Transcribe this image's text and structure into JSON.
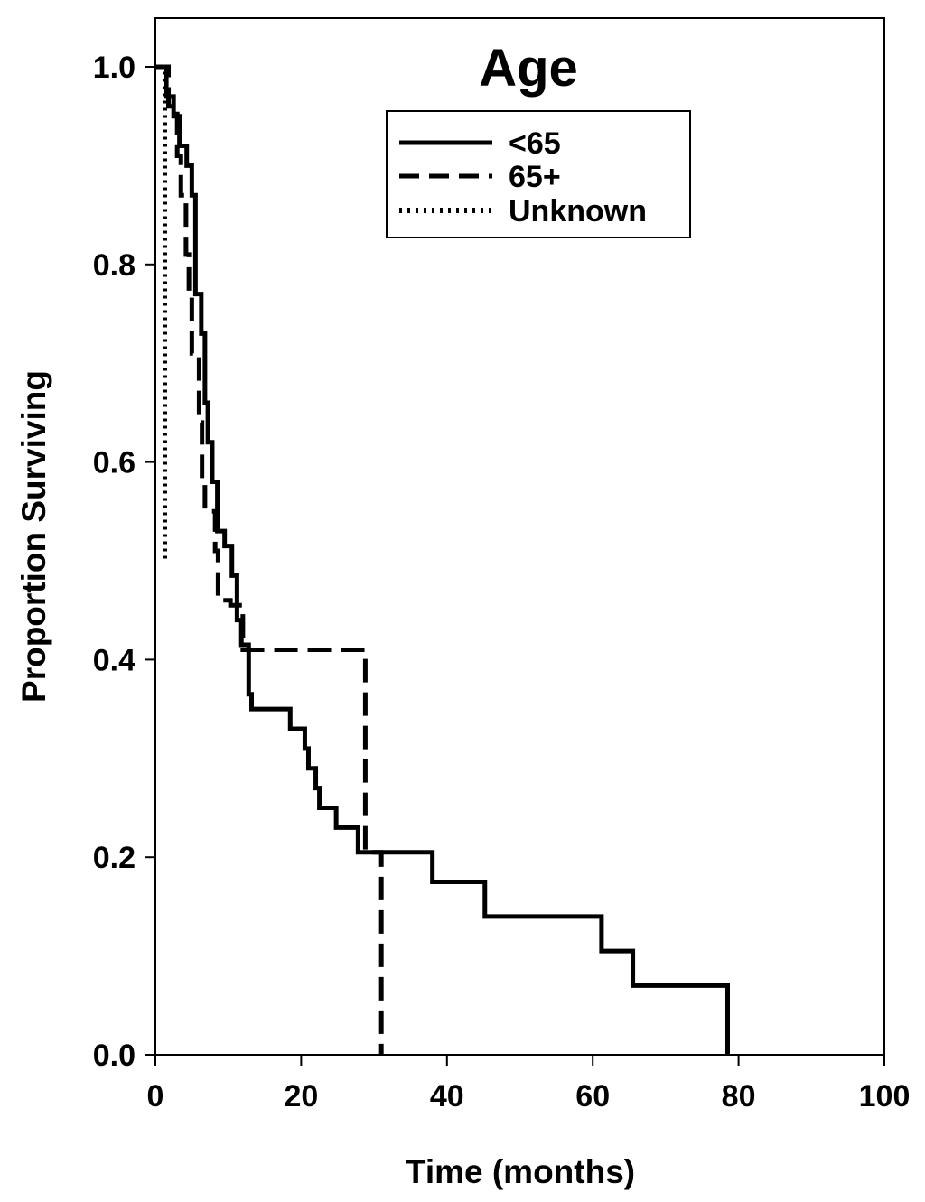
{
  "chart_data": {
    "type": "line",
    "step": true,
    "title": "Age",
    "xlabel": "Time (months)",
    "ylabel": "Proportion Surviving",
    "xlim": [
      0,
      100
    ],
    "ylim": [
      0,
      1.0
    ],
    "xticks": [
      "0",
      "20",
      "40",
      "60",
      "80",
      "100"
    ],
    "yticks": [
      "0.0",
      "0.2",
      "0.4",
      "0.6",
      "0.8",
      "1.0"
    ],
    "grid": false,
    "legend_placement": "top-right",
    "series": [
      {
        "name": "<65",
        "style": "solid",
        "color": "#000000",
        "points": [
          [
            0,
            1.0
          ],
          [
            1.0,
            1.0
          ],
          [
            1.5,
            0.97
          ],
          [
            2.5,
            0.95
          ],
          [
            3.3,
            0.92
          ],
          [
            4.3,
            0.9
          ],
          [
            5.0,
            0.87
          ],
          [
            5.5,
            0.77
          ],
          [
            6.3,
            0.73
          ],
          [
            6.8,
            0.66
          ],
          [
            7.2,
            0.62
          ],
          [
            7.8,
            0.58
          ],
          [
            8.5,
            0.53
          ],
          [
            9.5,
            0.515
          ],
          [
            10.5,
            0.485
          ],
          [
            11.2,
            0.44
          ],
          [
            11.8,
            0.415
          ],
          [
            12.8,
            0.365
          ],
          [
            13.2,
            0.35
          ],
          [
            18.5,
            0.33
          ],
          [
            20.5,
            0.31
          ],
          [
            21.0,
            0.29
          ],
          [
            22.0,
            0.27
          ],
          [
            22.5,
            0.25
          ],
          [
            24.8,
            0.23
          ],
          [
            27.8,
            0.205
          ],
          [
            38.0,
            0.175
          ],
          [
            45.2,
            0.14
          ],
          [
            61.2,
            0.105
          ],
          [
            65.5,
            0.07
          ],
          [
            78.5,
            0.0
          ]
        ]
      },
      {
        "name": "65+",
        "style": "dashed",
        "color": "#000000",
        "points": [
          [
            0,
            1.0
          ],
          [
            1.2,
            1.0
          ],
          [
            1.8,
            0.96
          ],
          [
            3.0,
            0.91
          ],
          [
            3.5,
            0.87
          ],
          [
            4.2,
            0.81
          ],
          [
            4.6,
            0.77
          ],
          [
            5.0,
            0.71
          ],
          [
            6.0,
            0.64
          ],
          [
            6.4,
            0.58
          ],
          [
            6.8,
            0.55
          ],
          [
            8.2,
            0.51
          ],
          [
            8.6,
            0.46
          ],
          [
            10.3,
            0.455
          ],
          [
            12.0,
            0.41
          ],
          [
            28.8,
            0.205
          ],
          [
            31.0,
            0.0
          ]
        ]
      },
      {
        "name": "Unknown",
        "style": "dotted",
        "color": "#000000",
        "points": [
          [
            0,
            1.0
          ],
          [
            1.2,
            1.0
          ],
          [
            1.3,
            0.5
          ]
        ]
      }
    ]
  }
}
